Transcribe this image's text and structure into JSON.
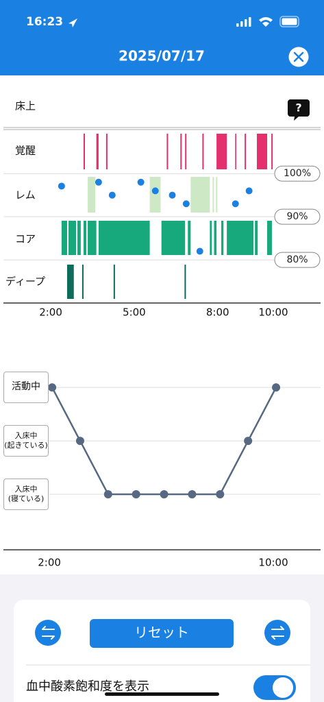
{
  "status_bar": {
    "time": "16:23"
  },
  "header": {
    "title": "2025/07/17"
  },
  "sleep_chart": {
    "type": "timeline",
    "help": "?",
    "stages": [
      {
        "name": "床上"
      },
      {
        "name": "覚醒",
        "color": "#e5306e",
        "segments": [
          [
            3.18,
            3.23
          ],
          [
            3.64,
            3.72
          ],
          [
            3.99,
            4.04
          ],
          [
            6.17,
            6.22
          ],
          [
            6.66,
            6.71
          ],
          [
            6.83,
            6.88
          ],
          [
            7.45,
            7.5
          ],
          [
            7.96,
            8.33
          ],
          [
            8.63,
            8.67
          ],
          [
            8.97,
            9.02
          ],
          [
            9.41,
            9.78
          ],
          [
            9.93,
            9.98
          ]
        ]
      },
      {
        "name": "レム",
        "color": "#cde8c4",
        "segments": [
          [
            3.33,
            3.6
          ],
          [
            5.56,
            5.95
          ],
          [
            7.03,
            7.72
          ],
          [
            7.82,
            7.87
          ],
          [
            7.94,
            7.99
          ]
        ]
      },
      {
        "name": "コア",
        "color": "#17a97b",
        "segments": [
          [
            2.39,
            2.59
          ],
          [
            2.64,
            2.91
          ],
          [
            2.96,
            3.08
          ],
          [
            3.18,
            3.28
          ],
          [
            3.33,
            3.64
          ],
          [
            3.72,
            5.56
          ],
          [
            5.98,
            6.83
          ],
          [
            6.93,
            7.03
          ],
          [
            7.72,
            7.79
          ],
          [
            7.87,
            7.96
          ],
          [
            8.13,
            8.21
          ],
          [
            8.33,
            9.29
          ],
          [
            9.34,
            9.44
          ],
          [
            9.78,
            9.95
          ]
        ]
      },
      {
        "name": "ディープ",
        "color": "#0f6b5a",
        "segments": [
          [
            2.59,
            2.83
          ],
          [
            3.13,
            3.18
          ],
          [
            4.26,
            4.31
          ],
          [
            6.81,
            6.86
          ]
        ]
      }
    ],
    "xlim": [
      0.3,
      11.7
    ],
    "xticks": [
      {
        "value": 2,
        "label": "2:00"
      },
      {
        "value": 5,
        "label": "5:00"
      },
      {
        "value": 8,
        "label": "8:00"
      },
      {
        "value": 10,
        "label": "10:00"
      }
    ],
    "spo2": {
      "color": "#1a80e2",
      "x": [
        2.39,
        3.72,
        4.21,
        5.24,
        5.76,
        6.37,
        6.87,
        7.36,
        8.64,
        9.13
      ],
      "values": [
        97.1,
        98,
        95,
        98,
        96,
        95,
        93,
        82,
        93,
        96
      ],
      "ylim": [
        70,
        110.2
      ],
      "yticks": [
        {
          "value": 100,
          "label": "100%"
        },
        {
          "value": 90,
          "label": "90%"
        },
        {
          "value": 80,
          "label": "80%"
        }
      ]
    }
  },
  "status_chart": {
    "type": "line",
    "color": "#566882",
    "levels": [
      "入床中\n(寝ている)",
      "入床中\n(起きている)",
      "活動中"
    ],
    "x": [
      2,
      3,
      4,
      5,
      6,
      7,
      8,
      9,
      10
    ],
    "values": [
      2,
      1,
      0,
      0,
      0,
      0,
      0,
      1,
      2
    ],
    "xlim": [
      0.26,
      11.59
    ],
    "ylim": [
      -1.04,
      2.58
    ],
    "xticks": [
      {
        "value": 2,
        "label": "2:00"
      },
      {
        "value": 10,
        "label": "10:00"
      }
    ]
  },
  "controls": {
    "reset": "リセット",
    "toggle_label": "血中酸素飽和度を表示",
    "toggle_on": true
  }
}
